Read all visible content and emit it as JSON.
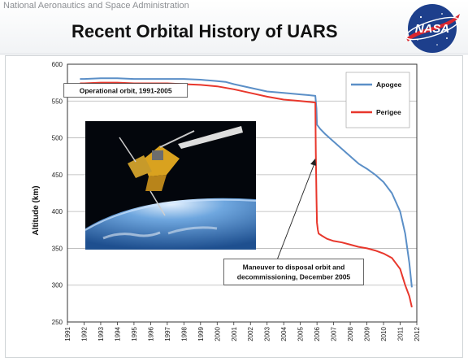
{
  "header": {
    "agency": "National Aeronautics and Space Administration",
    "title": "Recent Orbital History of UARS",
    "logo_text": "NASA"
  },
  "colors": {
    "apogee": "#5b8fc7",
    "perigee": "#e8372c",
    "grid": "#b5b5b5",
    "plot_border": "#333333"
  },
  "chart_data": {
    "type": "line",
    "title": "",
    "xlabel": "",
    "ylabel": "Altitude (km)",
    "xlim": [
      1991,
      2012
    ],
    "ylim": [
      250,
      600
    ],
    "grid": true,
    "legend_position": "top-right",
    "x_ticks": [
      1991,
      1992,
      1993,
      1994,
      1995,
      1996,
      1997,
      1998,
      1999,
      2000,
      2001,
      2002,
      2003,
      2004,
      2005,
      2006,
      2007,
      2008,
      2009,
      2010,
      2011,
      2012
    ],
    "y_ticks": [
      250,
      300,
      350,
      400,
      450,
      500,
      550,
      600
    ],
    "series": [
      {
        "name": "Apogee",
        "color": "#5b8fc7",
        "x": [
          1991.75,
          1992,
          1993,
          1994,
          1995,
          1996,
          1997,
          1998,
          1999,
          2000,
          2000.5,
          2001,
          2002,
          2003,
          2004,
          2005,
          2005.5,
          2005.9,
          2005.97,
          2006.0,
          2006.2,
          2006.5,
          2007,
          2007.5,
          2008,
          2008.5,
          2009,
          2009.5,
          2010,
          2010.5,
          2011,
          2011.3,
          2011.55,
          2011.7
        ],
        "y": [
          580,
          580,
          581,
          581,
          580,
          580,
          580,
          580,
          579,
          577,
          576,
          573,
          568,
          563,
          561,
          559,
          558,
          557,
          540,
          518,
          512,
          505,
          495,
          485,
          475,
          465,
          458,
          450,
          440,
          425,
          400,
          370,
          330,
          297
        ]
      },
      {
        "name": "Perigee",
        "color": "#e8372c",
        "x": [
          1991.75,
          1992,
          1993,
          1994,
          1995,
          1996,
          1997,
          1998,
          1999,
          2000,
          2001,
          2002,
          2003,
          2004,
          2005,
          2005.5,
          2005.9,
          2005.93,
          2005.97,
          2006.0,
          2006.05,
          2006.1,
          2006.3,
          2006.6,
          2007,
          2007.5,
          2008,
          2008.5,
          2009,
          2009.5,
          2010,
          2010.5,
          2011,
          2011.3,
          2011.55,
          2011.7
        ],
        "y": [
          574,
          574,
          575,
          575,
          574,
          574,
          574,
          573,
          572,
          570,
          566,
          561,
          556,
          552,
          550,
          549,
          548,
          480,
          420,
          385,
          375,
          370,
          367,
          363,
          360,
          358,
          355,
          352,
          350,
          347,
          343,
          337,
          322,
          300,
          285,
          270
        ]
      }
    ],
    "annotations": [
      {
        "text": "Operational orbit, 1991-2005",
        "x": 1994.5,
        "y": 564
      },
      {
        "lines": [
          "Maneuver to disposal orbit and",
          "decommissioning, December 2005"
        ],
        "x": 2004.6,
        "y": 318,
        "arrow_to": {
          "x": 2005.9,
          "y": 472
        }
      }
    ]
  }
}
